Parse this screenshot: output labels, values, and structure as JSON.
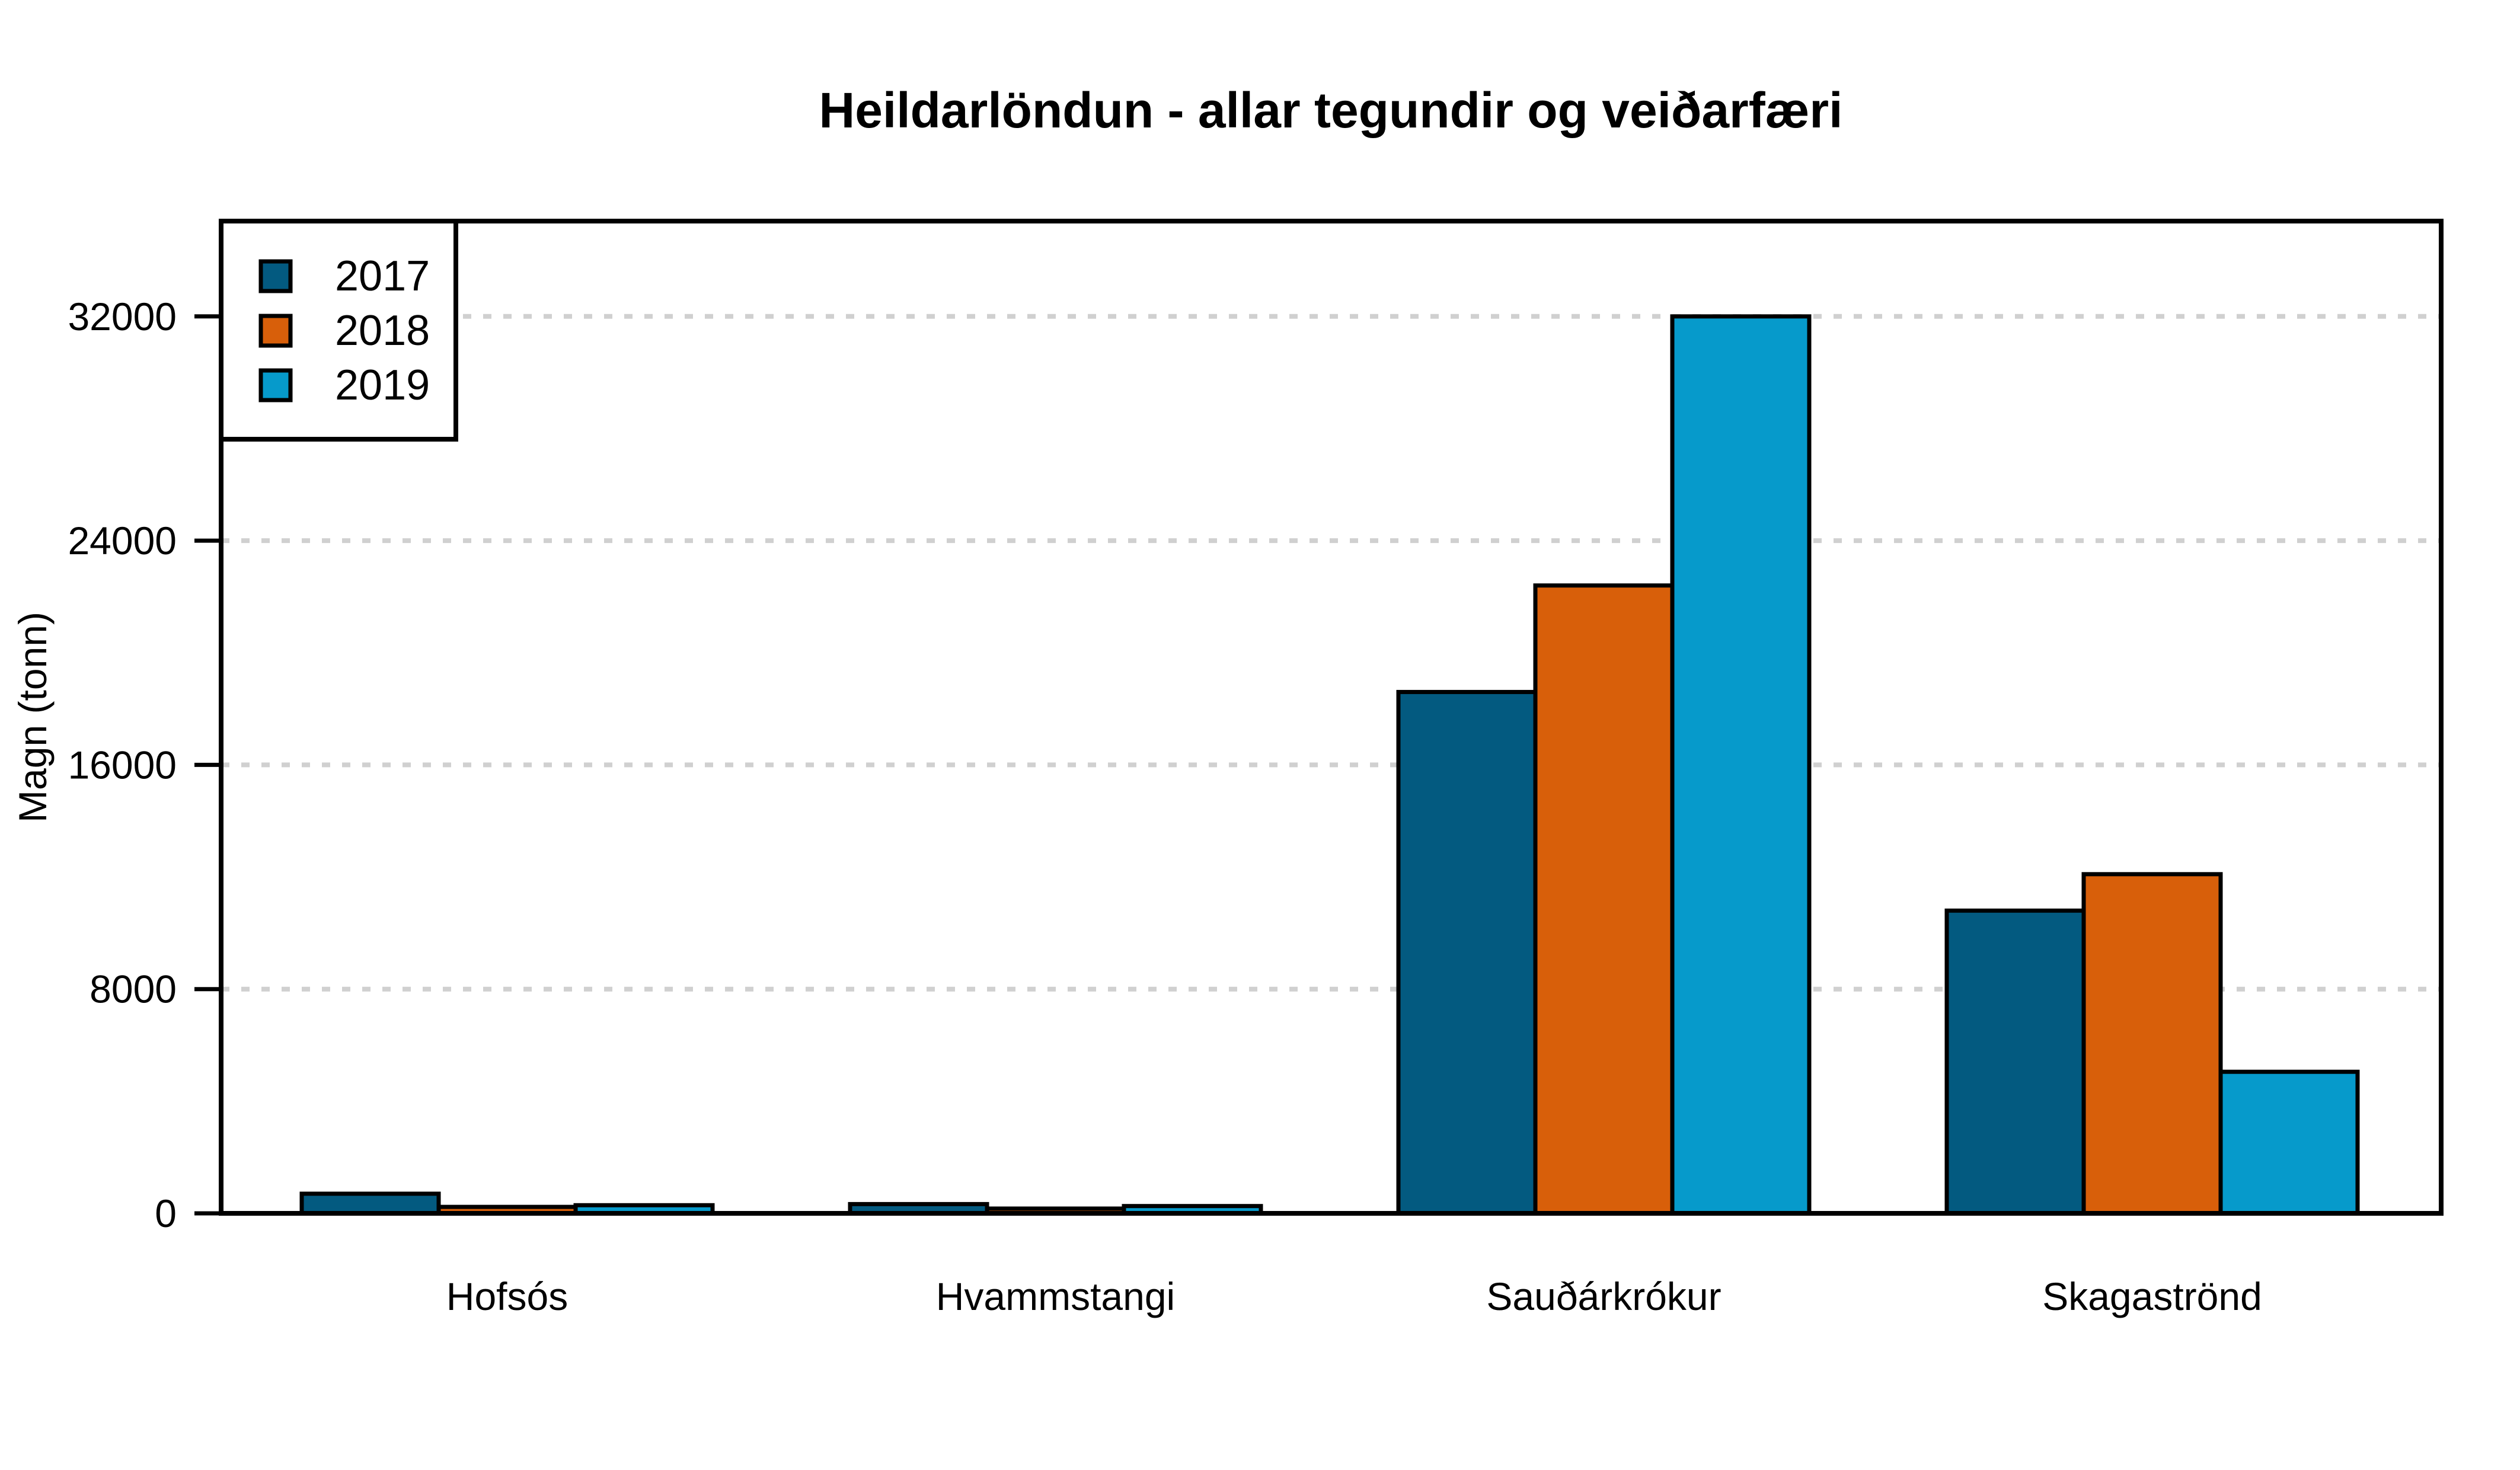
{
  "chart_data": {
    "type": "bar",
    "title": "Heildarlöndun - allar tegundir og veiðarfæri",
    "xlabel": "",
    "ylabel": "Magn (tonn)",
    "ylim": [
      0,
      35400
    ],
    "yticks": [
      0,
      8000,
      16000,
      24000,
      32000
    ],
    "grid": "horizontal dashed",
    "legend_position": "top-left",
    "categories": [
      "Hofsós",
      "Hvammstangi",
      "Sauðárkrókur",
      "Skagaströnd"
    ],
    "series": [
      {
        "name": "2017",
        "color": "#035a80",
        "values": [
          700,
          330,
          18600,
          10800
        ]
      },
      {
        "name": "2018",
        "color": "#d85f0a",
        "values": [
          230,
          170,
          22400,
          12100
        ]
      },
      {
        "name": "2019",
        "color": "#069acb",
        "values": [
          290,
          260,
          32000,
          5050
        ]
      }
    ]
  }
}
